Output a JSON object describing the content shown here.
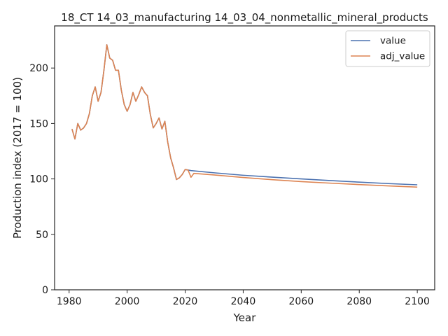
{
  "chart_data": {
    "type": "line",
    "title": "18_CT 14_03_manufacturing 14_03_04_nonmetallic_mineral_products",
    "xlabel": "Year",
    "ylabel": "Production index (2017 = 100)",
    "xlim": [
      1975,
      2106
    ],
    "ylim": [
      0,
      238
    ],
    "xticks": [
      1980,
      2000,
      2020,
      2040,
      2060,
      2080,
      2100
    ],
    "yticks": [
      0,
      50,
      100,
      150,
      200
    ],
    "grid": false,
    "legend_position": "top-right",
    "series": [
      {
        "name": "value",
        "color": "#4c72b0",
        "x": [
          1981,
          1982,
          1983,
          1984,
          1985,
          1986,
          1987,
          1988,
          1989,
          1990,
          1991,
          1992,
          1993,
          1994,
          1995,
          1996,
          1997,
          1998,
          1999,
          2000,
          2001,
          2002,
          2003,
          2004,
          2005,
          2006,
          2007,
          2008,
          2009,
          2010,
          2011,
          2012,
          2013,
          2014,
          2015,
          2016,
          2017,
          2018,
          2019,
          2020,
          2021,
          2022,
          2030,
          2040,
          2050,
          2060,
          2070,
          2080,
          2090,
          2100
        ],
        "y": [
          145,
          136,
          150,
          144,
          146,
          150,
          159,
          175,
          183,
          170,
          178,
          198,
          221,
          209,
          207,
          198,
          198,
          180,
          167,
          161,
          167,
          178,
          170,
          176,
          183,
          178,
          175,
          158,
          146,
          150,
          155,
          145,
          152,
          133,
          119,
          110,
          99.5,
          101,
          104,
          108.5,
          108,
          107.5,
          105.5,
          103.3,
          101.6,
          100,
          98.5,
          97.1,
          95.8,
          94.7
        ]
      },
      {
        "name": "adj_value",
        "color": "#dd8452",
        "x": [
          1981,
          1982,
          1983,
          1984,
          1985,
          1986,
          1987,
          1988,
          1989,
          1990,
          1991,
          1992,
          1993,
          1994,
          1995,
          1996,
          1997,
          1998,
          1999,
          2000,
          2001,
          2002,
          2003,
          2004,
          2005,
          2006,
          2007,
          2008,
          2009,
          2010,
          2011,
          2012,
          2013,
          2014,
          2015,
          2016,
          2017,
          2018,
          2019,
          2020,
          2021,
          2022,
          2023,
          2030,
          2040,
          2050,
          2060,
          2070,
          2080,
          2090,
          2100
        ],
        "y": [
          145,
          136,
          150,
          144,
          146,
          150,
          159,
          175,
          183,
          170,
          178,
          198,
          221,
          209,
          207,
          198,
          198,
          180,
          167,
          161,
          167,
          178,
          170,
          176,
          183,
          178,
          175,
          158,
          146,
          150,
          155,
          145,
          152,
          133,
          119,
          110,
          99.5,
          101,
          104,
          108.5,
          108,
          101.5,
          105,
          103.6,
          101.3,
          99.3,
          97.6,
          96.2,
          94.9,
          93.7,
          92.6
        ]
      }
    ]
  }
}
